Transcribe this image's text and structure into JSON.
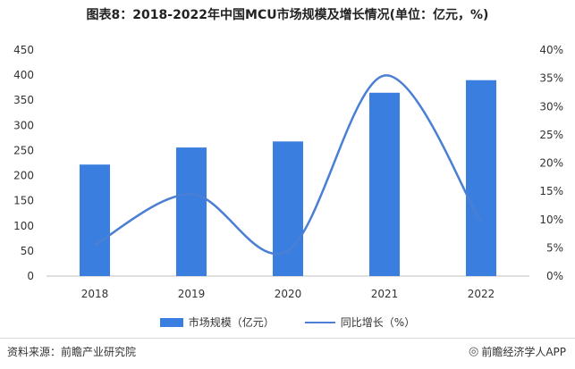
{
  "title": "图表8：2018-2022年中国MCU市场规模及增长情况(单位：亿元，%)",
  "chart_data": {
    "type": "bar",
    "categories": [
      "2018",
      "2019",
      "2020",
      "2021",
      "2022"
    ],
    "series": [
      {
        "name": "市场规模（亿元）",
        "type": "bar",
        "axis": "left",
        "values": [
          222,
          256,
          268,
          365,
          390
        ]
      },
      {
        "name": "同比增长（%）",
        "type": "line",
        "axis": "right",
        "values": [
          5.5,
          14.5,
          4.5,
          35.5,
          9.5
        ]
      }
    ],
    "y_left": {
      "ylim": [
        0,
        450
      ],
      "ticks": [
        "0",
        "50",
        "100",
        "150",
        "200",
        "250",
        "300",
        "350",
        "400",
        "450"
      ]
    },
    "y_right": {
      "ylim": [
        0,
        40
      ],
      "ticks": [
        "0%",
        "5%",
        "10%",
        "15%",
        "20%",
        "25%",
        "30%",
        "35%",
        "40%"
      ]
    },
    "grid": false,
    "legend": "bottom",
    "colors": {
      "bar": "#3a7fe0",
      "line": "#4a7fd4"
    }
  },
  "footer": {
    "source": "资料来源：前瞻产业研究院",
    "brand_icon": "brand-logo-icon",
    "brand": "前瞻经济学人APP"
  }
}
